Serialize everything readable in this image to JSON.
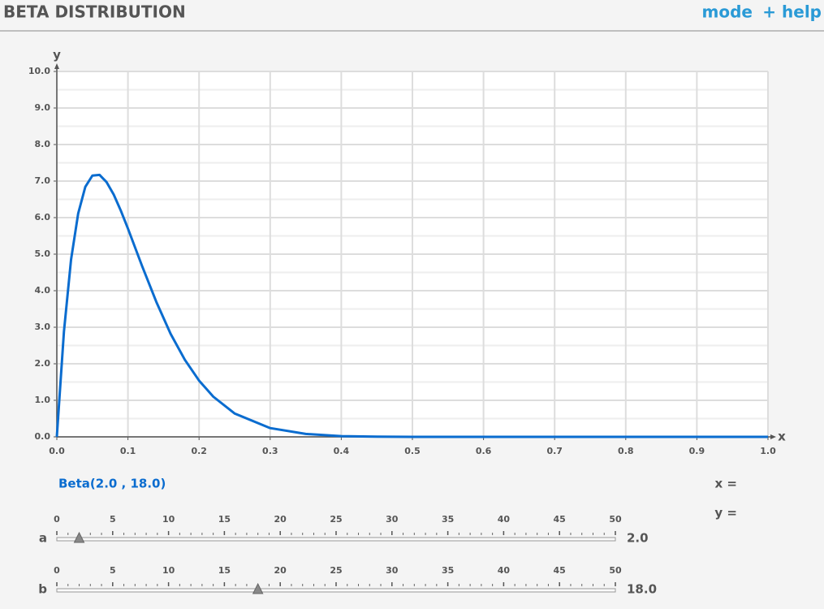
{
  "header": {
    "title": "BETA DISTRIBUTION",
    "links": [
      "mode",
      "+ help"
    ]
  },
  "chart_data": {
    "type": "line",
    "x": [
      0,
      0.01,
      0.02,
      0.03,
      0.04,
      0.05,
      0.06,
      0.07,
      0.08,
      0.09,
      0.1,
      0.12,
      0.14,
      0.16,
      0.18,
      0.2,
      0.22,
      0.25,
      0.3,
      0.35,
      0.4,
      0.45,
      0.5,
      0.6,
      0.8,
      1
    ],
    "series": [
      {
        "name": "Beta(2.0 , 18.0)",
        "color": "#0a6ccf",
        "values": [
          0,
          2.88,
          4.85,
          6.11,
          6.84,
          7.15,
          7.17,
          6.97,
          6.63,
          6.19,
          5.7,
          4.67,
          3.69,
          2.82,
          2.11,
          1.54,
          1.1,
          0.64,
          0.24,
          0.08,
          0.02,
          0.006,
          0.001,
          0,
          0,
          0
        ]
      }
    ],
    "xlabel": "x",
    "ylabel": "y",
    "xlim": [
      0,
      1
    ],
    "ylim": [
      0,
      10
    ],
    "xticks": [
      {
        "value": 0,
        "label": "0.0"
      },
      0.1,
      0.2,
      0.3,
      0.4,
      0.5,
      0.6,
      0.7,
      0.8,
      0.9,
      {
        "value": 1,
        "label": "1.0"
      }
    ],
    "yticks": [
      {
        "value": 0,
        "label": "0.0"
      },
      {
        "value": 1,
        "label": "1.0"
      },
      {
        "value": 2,
        "label": "2.0"
      },
      {
        "value": 3,
        "label": "3.0"
      },
      {
        "value": 4,
        "label": "4.0"
      },
      {
        "value": 5,
        "label": "5.0"
      },
      {
        "value": 6,
        "label": "6.0"
      },
      {
        "value": 7,
        "label": "7.0"
      },
      {
        "value": 8,
        "label": "8.0"
      },
      {
        "value": 9,
        "label": "9.0"
      },
      {
        "value": 10,
        "label": "10.0"
      }
    ],
    "grid": true
  },
  "readout": {
    "x": "x =",
    "y": "y ="
  },
  "sliders": [
    {
      "name": "a",
      "lim": [
        0,
        50
      ],
      "ticks": [
        0,
        5,
        10,
        15,
        20,
        25,
        30,
        35,
        40,
        45,
        50
      ],
      "value": {
        "value": 2,
        "label": "2.0"
      }
    },
    {
      "name": "b",
      "lim": [
        0,
        50
      ],
      "ticks": [
        0,
        5,
        10,
        15,
        20,
        25,
        30,
        35,
        40,
        45,
        50
      ],
      "value": {
        "value": 18,
        "label": "18.0"
      }
    }
  ]
}
